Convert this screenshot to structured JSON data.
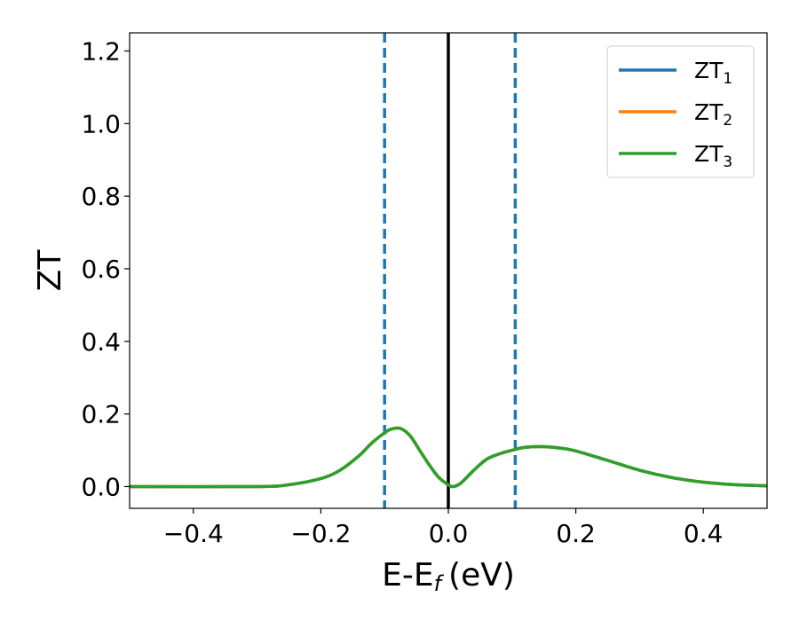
{
  "chart_data": {
    "type": "line",
    "xlabel": "E-E",
    "xlabel_sub": "f",
    "xlabel_unit": "(eV)",
    "ylabel": "ZT",
    "xlim": [
      -0.5,
      0.5
    ],
    "ylim": [
      -0.06,
      1.25
    ],
    "x_ticks": [
      -0.4,
      -0.2,
      0.0,
      0.2,
      0.4
    ],
    "x_tick_labels": [
      "−0.4",
      "−0.2",
      "0.0",
      "0.2",
      "0.4"
    ],
    "y_ticks": [
      0.0,
      0.2,
      0.4,
      0.6,
      0.8,
      1.0,
      1.2
    ],
    "y_tick_labels": [
      "0.0",
      "0.2",
      "0.4",
      "0.6",
      "0.8",
      "1.0",
      "1.2"
    ],
    "grid": false,
    "legend_position": "top-right",
    "series": [
      {
        "name": "ZT",
        "sub": "1",
        "color": "#1f77b4",
        "x": [
          -0.5,
          -0.3,
          -0.25,
          -0.2,
          -0.17,
          -0.14,
          -0.12,
          -0.1,
          -0.09,
          -0.075,
          -0.06,
          -0.045,
          -0.03,
          -0.015,
          0.0,
          0.008,
          0.02,
          0.04,
          0.06,
          0.08,
          0.1,
          0.12,
          0.15,
          0.18,
          0.2,
          0.25,
          0.3,
          0.35,
          0.4,
          0.45,
          0.5
        ],
        "y": [
          0.0,
          0.0,
          0.005,
          0.022,
          0.045,
          0.085,
          0.12,
          0.148,
          0.158,
          0.16,
          0.14,
          0.1,
          0.06,
          0.025,
          0.005,
          0.0,
          0.01,
          0.045,
          0.075,
          0.09,
          0.1,
          0.108,
          0.11,
          0.105,
          0.098,
          0.072,
          0.045,
          0.025,
          0.012,
          0.005,
          0.002
        ]
      },
      {
        "name": "ZT",
        "sub": "2",
        "color": "#ff7f0e",
        "x": [
          -0.5,
          -0.3,
          -0.25,
          -0.2,
          -0.17,
          -0.14,
          -0.12,
          -0.1,
          -0.09,
          -0.075,
          -0.06,
          -0.045,
          -0.03,
          -0.015,
          0.0,
          0.008,
          0.02,
          0.04,
          0.06,
          0.08,
          0.1,
          0.12,
          0.15,
          0.18,
          0.2,
          0.25,
          0.3,
          0.35,
          0.4,
          0.45,
          0.5
        ],
        "y": [
          0.0,
          0.0,
          0.005,
          0.022,
          0.045,
          0.085,
          0.12,
          0.148,
          0.158,
          0.16,
          0.14,
          0.1,
          0.06,
          0.025,
          0.005,
          0.0,
          0.01,
          0.045,
          0.075,
          0.09,
          0.1,
          0.108,
          0.11,
          0.105,
          0.098,
          0.072,
          0.045,
          0.025,
          0.012,
          0.005,
          0.002
        ]
      },
      {
        "name": "ZT",
        "sub": "3",
        "color": "#2ca02c",
        "x": [
          -0.5,
          -0.3,
          -0.25,
          -0.2,
          -0.17,
          -0.14,
          -0.12,
          -0.1,
          -0.09,
          -0.075,
          -0.06,
          -0.045,
          -0.03,
          -0.015,
          0.0,
          0.008,
          0.02,
          0.04,
          0.06,
          0.08,
          0.1,
          0.12,
          0.15,
          0.18,
          0.2,
          0.25,
          0.3,
          0.35,
          0.4,
          0.45,
          0.5
        ],
        "y": [
          0.0,
          0.0,
          0.005,
          0.022,
          0.045,
          0.085,
          0.12,
          0.148,
          0.158,
          0.16,
          0.14,
          0.1,
          0.06,
          0.025,
          0.005,
          0.0,
          0.01,
          0.045,
          0.075,
          0.09,
          0.1,
          0.108,
          0.11,
          0.105,
          0.098,
          0.072,
          0.045,
          0.025,
          0.012,
          0.005,
          0.002
        ]
      }
    ],
    "vlines": [
      {
        "x": -0.1,
        "style": "dashed",
        "color": "#1f77b4"
      },
      {
        "x": 0.0,
        "style": "solid",
        "color": "#000000"
      },
      {
        "x": 0.105,
        "style": "dashed",
        "color": "#1f77b4"
      }
    ]
  }
}
